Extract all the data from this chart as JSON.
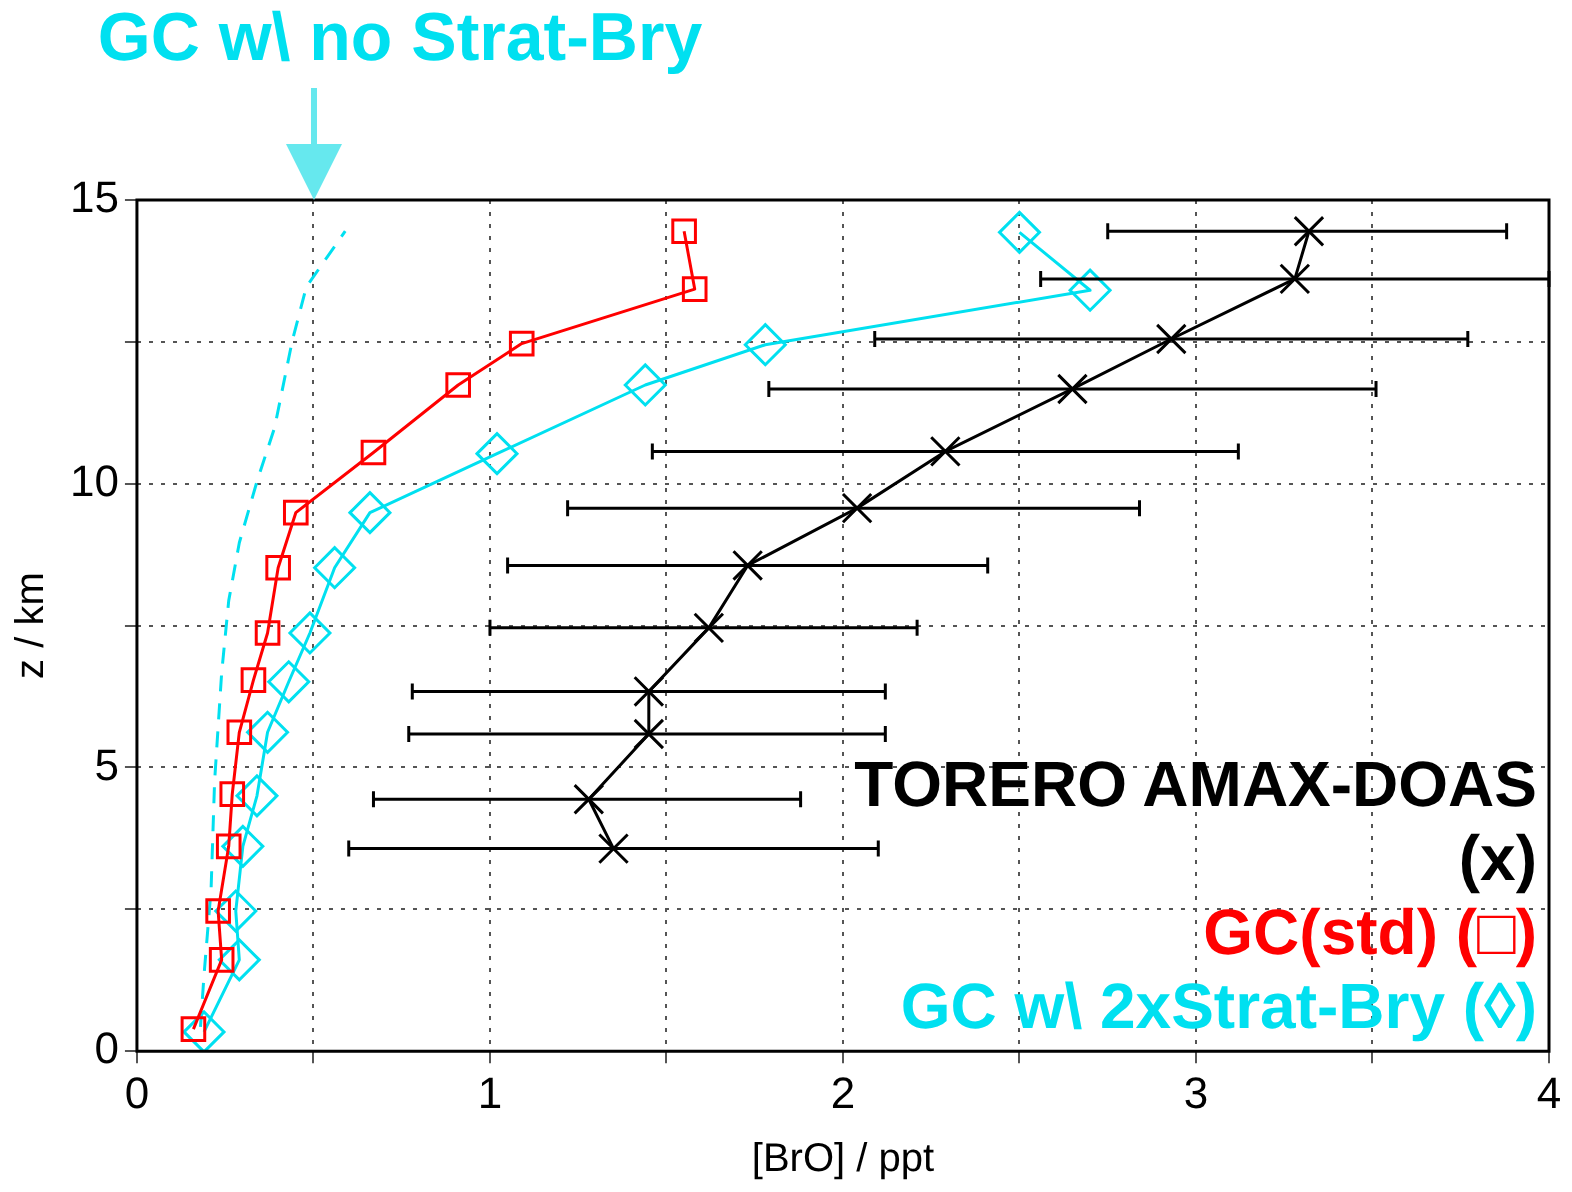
{
  "chart_data": {
    "type": "line",
    "xlabel": "[BrO] / ppt",
    "ylabel": "z / km",
    "xlim": [
      0,
      4
    ],
    "xticks": [
      0,
      {
        "value": 0.5,
        "label": null
      },
      1,
      {
        "value": 1.5,
        "label": null
      },
      2,
      {
        "value": 2.5,
        "label": null
      },
      3,
      {
        "value": 3.5,
        "label": null
      },
      4
    ],
    "ylim": [
      0,
      15
    ],
    "yticks": [
      0,
      {
        "value": 2.5,
        "label": null
      },
      5,
      {
        "value": 7.5,
        "label": null
      },
      10,
      {
        "value": 12.5,
        "label": null
      },
      15
    ],
    "grid": true,
    "legend": "bottom right",
    "annotations": [
      "GC w\\ no Strat-Bry"
    ],
    "series": [
      {
        "name": "TORERO AMAX-DOAS (x)",
        "color": "#000000",
        "marker": "cross",
        "line_style": "solid",
        "x": [
          1.35,
          1.28,
          1.45,
          1.45,
          1.62,
          1.73,
          2.04,
          2.29,
          2.65,
          2.93,
          3.28,
          3.32
        ],
        "values": [
          3.57,
          4.44,
          5.59,
          6.34,
          7.46,
          8.56,
          9.57,
          10.57,
          11.67,
          12.55,
          13.61,
          14.45
        ],
        "xerrors": [
          [
            0.6,
            2.1
          ],
          [
            0.67,
            1.88
          ],
          [
            0.77,
            2.12
          ],
          [
            0.78,
            2.12
          ],
          [
            1.0,
            2.21
          ],
          [
            1.05,
            2.41
          ],
          [
            1.22,
            2.84
          ],
          [
            1.46,
            3.12
          ],
          [
            1.79,
            3.51
          ],
          [
            2.09,
            3.77
          ],
          [
            2.56,
            4.0
          ],
          [
            2.75,
            3.88
          ]
        ]
      },
      {
        "name": "GC(std) (□)",
        "color": "#ff0000",
        "marker": "square",
        "line_style": "solid",
        "x": [
          0.16,
          0.24,
          0.23,
          0.26,
          0.27,
          0.29,
          0.33,
          0.37,
          0.4,
          0.45,
          0.67,
          0.91,
          1.09,
          1.58,
          1.55
        ],
        "values": [
          0.39,
          1.61,
          2.47,
          3.61,
          4.53,
          5.62,
          6.54,
          7.37,
          8.52,
          9.49,
          10.55,
          11.74,
          12.47,
          13.43,
          14.45
        ]
      },
      {
        "name": "GC w\\ 2xStrat-Bry (◊)",
        "color": "#00e0f0",
        "marker": "diamond",
        "line_style": "solid",
        "x": [
          0.19,
          0.29,
          0.28,
          0.3,
          0.34,
          0.37,
          0.43,
          0.49,
          0.56,
          0.66,
          1.02,
          1.44,
          1.78,
          2.7,
          2.5
        ],
        "values": [
          0.34,
          1.61,
          2.47,
          3.61,
          4.5,
          5.62,
          6.51,
          7.37,
          8.52,
          9.49,
          10.53,
          11.74,
          12.45,
          13.41,
          14.43
        ]
      },
      {
        "color": "#00e0f0",
        "marker": "none",
        "line_style": "dashed",
        "x": [
          0.18,
          0.19,
          0.21,
          0.22,
          0.24,
          0.26,
          0.29,
          0.34,
          0.39,
          0.44,
          0.48,
          0.59
        ],
        "values": [
          0.43,
          1.34,
          2.85,
          4.76,
          6.67,
          7.94,
          8.96,
          10.04,
          10.99,
          12.52,
          13.47,
          14.45
        ]
      }
    ]
  }
}
